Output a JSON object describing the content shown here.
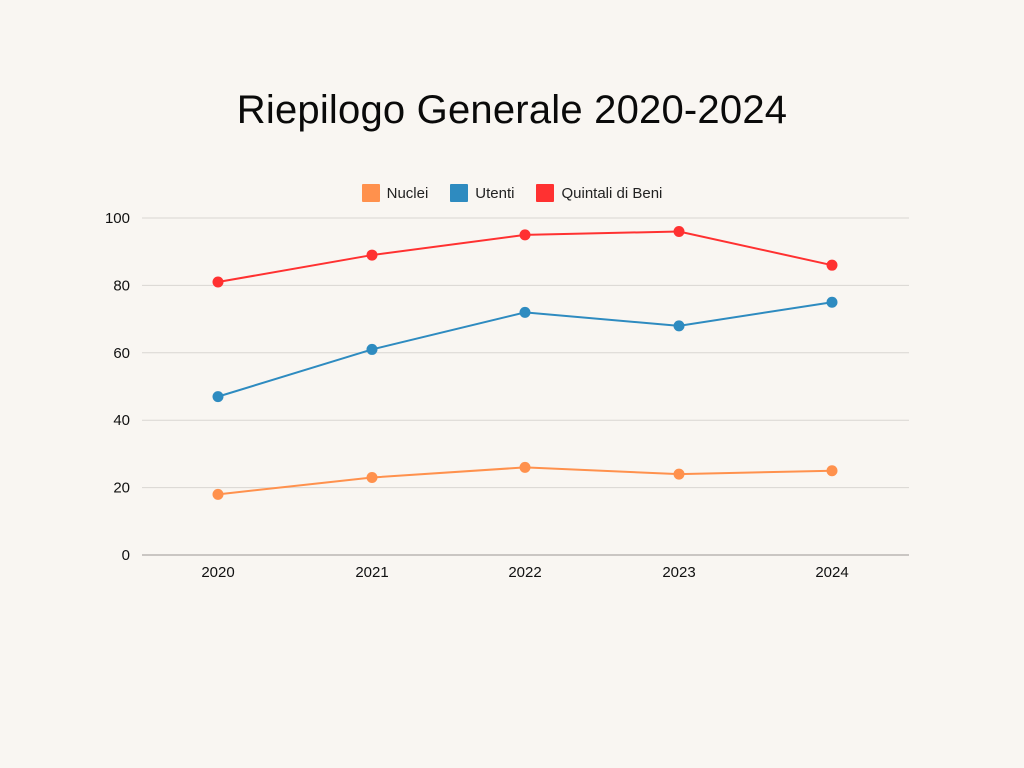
{
  "chart_data": {
    "type": "line",
    "title": "Riepilogo Generale 2020-2024",
    "xlabel": "",
    "ylabel": "",
    "categories": [
      "2020",
      "2021",
      "2022",
      "2023",
      "2024"
    ],
    "ylim": [
      0,
      100
    ],
    "yticks": [
      "0",
      "20",
      "40",
      "60",
      "80",
      "100"
    ],
    "grid": true,
    "legend_position": "top",
    "series": [
      {
        "name": "Nuclei",
        "color": "#ff914d",
        "values": [
          18,
          23,
          26,
          24,
          25
        ]
      },
      {
        "name": "Utenti",
        "color": "#2e8bc0",
        "values": [
          47,
          61,
          72,
          68,
          75
        ]
      },
      {
        "name": "Quintali di Beni",
        "color": "#ff3131",
        "values": [
          81,
          89,
          95,
          96,
          86
        ]
      }
    ]
  }
}
